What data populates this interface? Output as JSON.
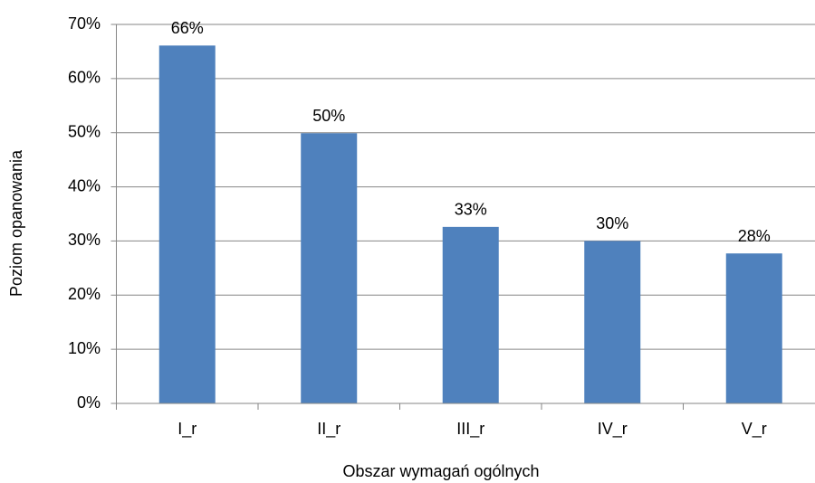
{
  "chart_data": {
    "type": "bar",
    "x_label": "Obszar wymagań ogólnych",
    "y_label": "Poziom opanowania",
    "categories": [
      "I_r",
      "II_r",
      "III_r",
      "IV_r",
      "V_r"
    ],
    "values": [
      66.1,
      49.9,
      32.6,
      30.0,
      27.7
    ],
    "value_labels": [
      "66%",
      "50%",
      "33%",
      "30%",
      "28%"
    ],
    "color": "#4f81bd",
    "ylim": [
      0,
      70
    ],
    "yticks": [
      {
        "value": 0,
        "label": "0%"
      },
      {
        "value": 10,
        "label": "10%"
      },
      {
        "value": 20,
        "label": "20%"
      },
      {
        "value": 30,
        "label": "30%"
      },
      {
        "value": 40,
        "label": "40%"
      },
      {
        "value": 50,
        "label": "50%"
      },
      {
        "value": 60,
        "label": "60%"
      },
      {
        "value": 70,
        "label": "70%"
      }
    ],
    "grid": true
  }
}
